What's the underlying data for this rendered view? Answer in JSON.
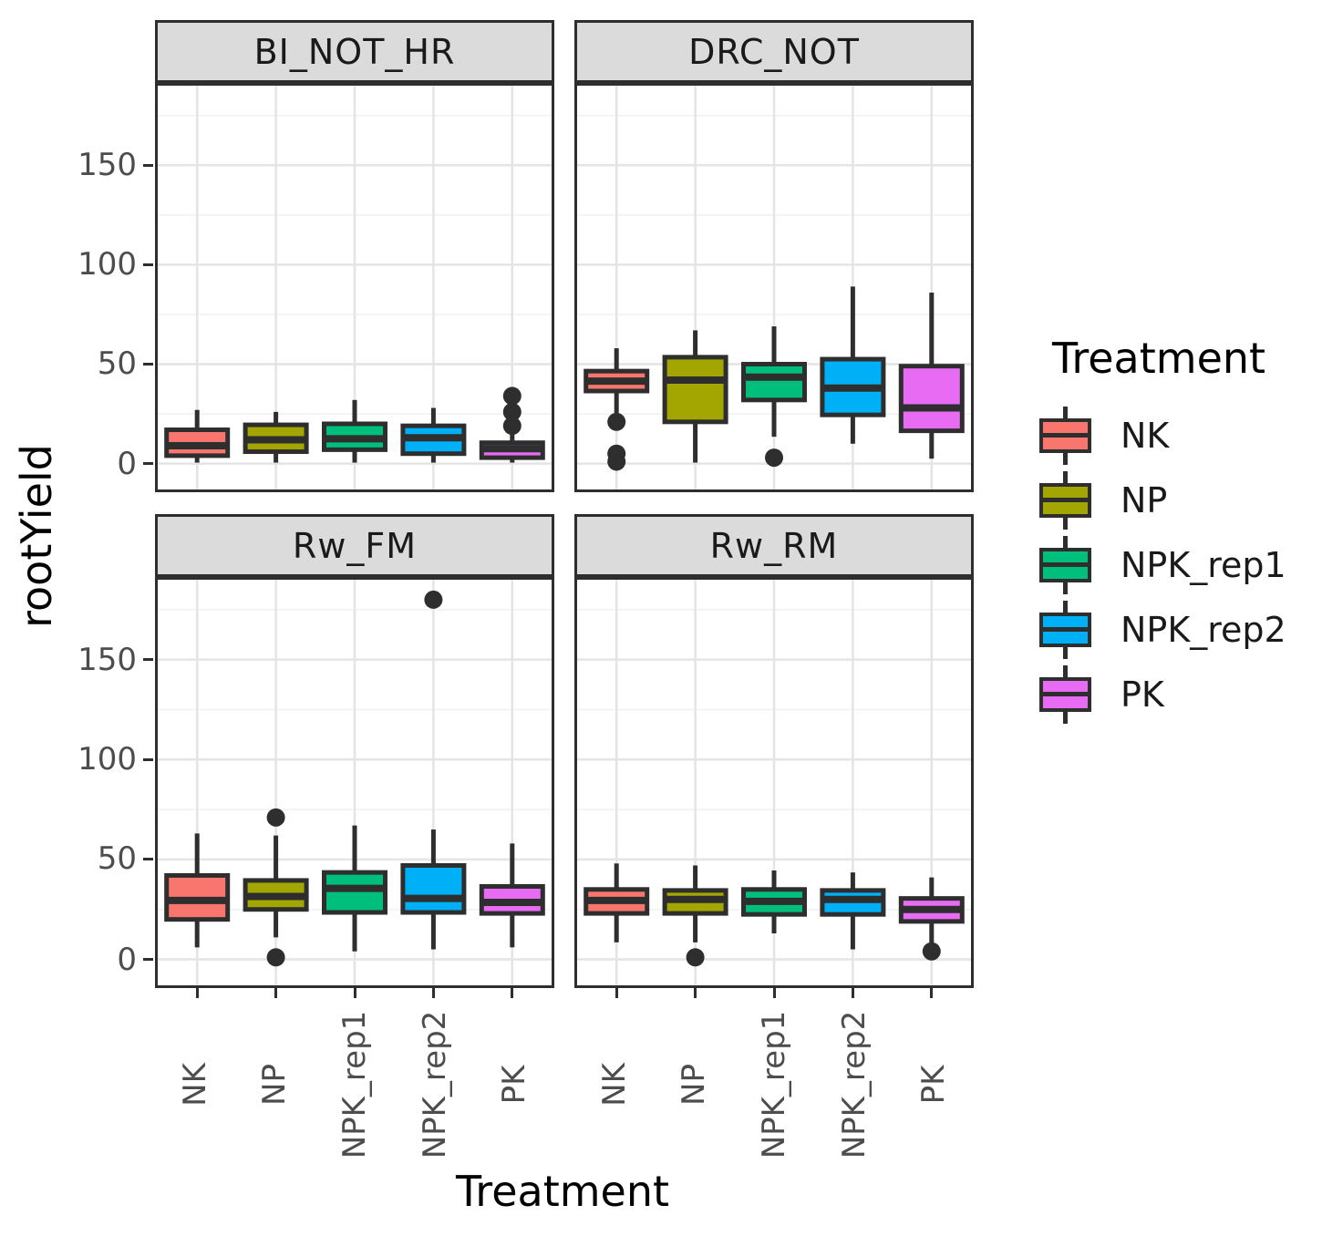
{
  "page": {
    "background": "#FFFFFF"
  },
  "chart_data": {
    "type": "boxplot",
    "title": "",
    "xlabel": "Treatment",
    "ylabel": "rootYield",
    "ylim": [
      -13,
      190
    ],
    "grid": true,
    "legend_position": "right",
    "yticks": [
      {
        "value": 150,
        "label": "150"
      },
      {
        "value": 100,
        "label": "100"
      },
      {
        "value": 50,
        "label": "50"
      },
      {
        "value": 0,
        "label": "0"
      }
    ],
    "yticks_minor": [
      175,
      125,
      75,
      25
    ],
    "categories": [
      "NK",
      "NP",
      "NPK_rep1",
      "NPK_rep2",
      "PK"
    ],
    "legend": {
      "title": "Treatment",
      "items": [
        {
          "label": "NK",
          "color": "#F8766D"
        },
        {
          "label": "NP",
          "color": "#A3A500"
        },
        {
          "label": "NPK_rep1",
          "color": "#00BF7D"
        },
        {
          "label": "NPK_rep2",
          "color": "#00B0F6"
        },
        {
          "label": "PK",
          "color": "#E76BF3"
        }
      ]
    },
    "style": {
      "stroke": "#2E2E2E",
      "grid_major": "#E4E4E4",
      "grid_minor": "#F1F1F1",
      "strip_bg": "#DBDBDB",
      "panel_border": "#2E2E2E",
      "tick_label_color": "#4D4D4D",
      "strip_text_color": "#1A1A1A",
      "axis_title_color": "#000000"
    },
    "facets": [
      {
        "name": "BI_NOT_HR",
        "boxes": [
          {
            "treatment": "NK",
            "color": "#F8766D",
            "whisker_low": 0.5,
            "q1": 4,
            "median": 9,
            "q3": 17,
            "whisker_high": 27,
            "outliers": []
          },
          {
            "treatment": "NP",
            "color": "#A3A500",
            "whisker_low": 0.5,
            "q1": 6,
            "median": 12,
            "q3": 19.5,
            "whisker_high": 26,
            "outliers": []
          },
          {
            "treatment": "NPK_rep1",
            "color": "#00BF7D",
            "whisker_low": 0.5,
            "q1": 7,
            "median": 12.5,
            "q3": 20,
            "whisker_high": 32,
            "outliers": []
          },
          {
            "treatment": "NPK_rep2",
            "color": "#00B0F6",
            "whisker_low": 0.5,
            "q1": 5,
            "median": 13,
            "q3": 19,
            "whisker_high": 28,
            "outliers": []
          },
          {
            "treatment": "PK",
            "color": "#E76BF3",
            "whisker_low": 0.5,
            "q1": 3,
            "median": 7.5,
            "q3": 10.5,
            "whisker_high": 16,
            "outliers": [
              34,
              26,
              19
            ]
          }
        ]
      },
      {
        "name": "DRC_NOT",
        "boxes": [
          {
            "treatment": "NK",
            "color": "#F8766D",
            "whisker_low": 25.5,
            "q1": 36.5,
            "median": 41.5,
            "q3": 46.5,
            "whisker_high": 58,
            "outliers": [
              21,
              5,
              1
            ]
          },
          {
            "treatment": "NP",
            "color": "#A3A500",
            "whisker_low": 0.5,
            "q1": 21,
            "median": 42,
            "q3": 53.5,
            "whisker_high": 67,
            "outliers": []
          },
          {
            "treatment": "NPK_rep1",
            "color": "#00BF7D",
            "whisker_low": 13.5,
            "q1": 32,
            "median": 43.5,
            "q3": 50,
            "whisker_high": 69,
            "outliers": [
              3
            ]
          },
          {
            "treatment": "NPK_rep2",
            "color": "#00B0F6",
            "whisker_low": 10,
            "q1": 24.5,
            "median": 38,
            "q3": 52.5,
            "whisker_high": 89,
            "outliers": []
          },
          {
            "treatment": "PK",
            "color": "#E76BF3",
            "whisker_low": 2.5,
            "q1": 16.5,
            "median": 28,
            "q3": 49,
            "whisker_high": 86,
            "outliers": []
          }
        ]
      },
      {
        "name": "Rw_FM",
        "boxes": [
          {
            "treatment": "NK",
            "color": "#F8766D",
            "whisker_low": 6,
            "q1": 20,
            "median": 29.5,
            "q3": 42,
            "whisker_high": 63,
            "outliers": []
          },
          {
            "treatment": "NP",
            "color": "#A3A500",
            "whisker_low": 11,
            "q1": 25,
            "median": 31.5,
            "q3": 39.5,
            "whisker_high": 62,
            "outliers": [
              71,
              1
            ]
          },
          {
            "treatment": "NPK_rep1",
            "color": "#00BF7D",
            "whisker_low": 4,
            "q1": 23.5,
            "median": 35.5,
            "q3": 43.5,
            "whisker_high": 67,
            "outliers": []
          },
          {
            "treatment": "NPK_rep2",
            "color": "#00B0F6",
            "whisker_low": 5,
            "q1": 23.5,
            "median": 30.5,
            "q3": 47,
            "whisker_high": 65,
            "outliers": [
              180
            ]
          },
          {
            "treatment": "PK",
            "color": "#E76BF3",
            "whisker_low": 6,
            "q1": 23,
            "median": 28.5,
            "q3": 36.5,
            "whisker_high": 58,
            "outliers": []
          }
        ]
      },
      {
        "name": "Rw_RM",
        "boxes": [
          {
            "treatment": "NK",
            "color": "#F8766D",
            "whisker_low": 8.5,
            "q1": 23,
            "median": 29.5,
            "q3": 35,
            "whisker_high": 48,
            "outliers": []
          },
          {
            "treatment": "NP",
            "color": "#A3A500",
            "whisker_low": 8.5,
            "q1": 23,
            "median": 30,
            "q3": 34.5,
            "whisker_high": 47,
            "outliers": [
              1
            ]
          },
          {
            "treatment": "NPK_rep1",
            "color": "#00BF7D",
            "whisker_low": 13,
            "q1": 22.5,
            "median": 29,
            "q3": 35,
            "whisker_high": 44.5,
            "outliers": []
          },
          {
            "treatment": "NPK_rep2",
            "color": "#00B0F6",
            "whisker_low": 5,
            "q1": 22.5,
            "median": 30,
            "q3": 34.5,
            "whisker_high": 43.5,
            "outliers": []
          },
          {
            "treatment": "PK",
            "color": "#E76BF3",
            "whisker_low": 8,
            "q1": 19,
            "median": 25,
            "q3": 30.5,
            "whisker_high": 41,
            "outliers": [
              4
            ]
          }
        ]
      }
    ]
  }
}
